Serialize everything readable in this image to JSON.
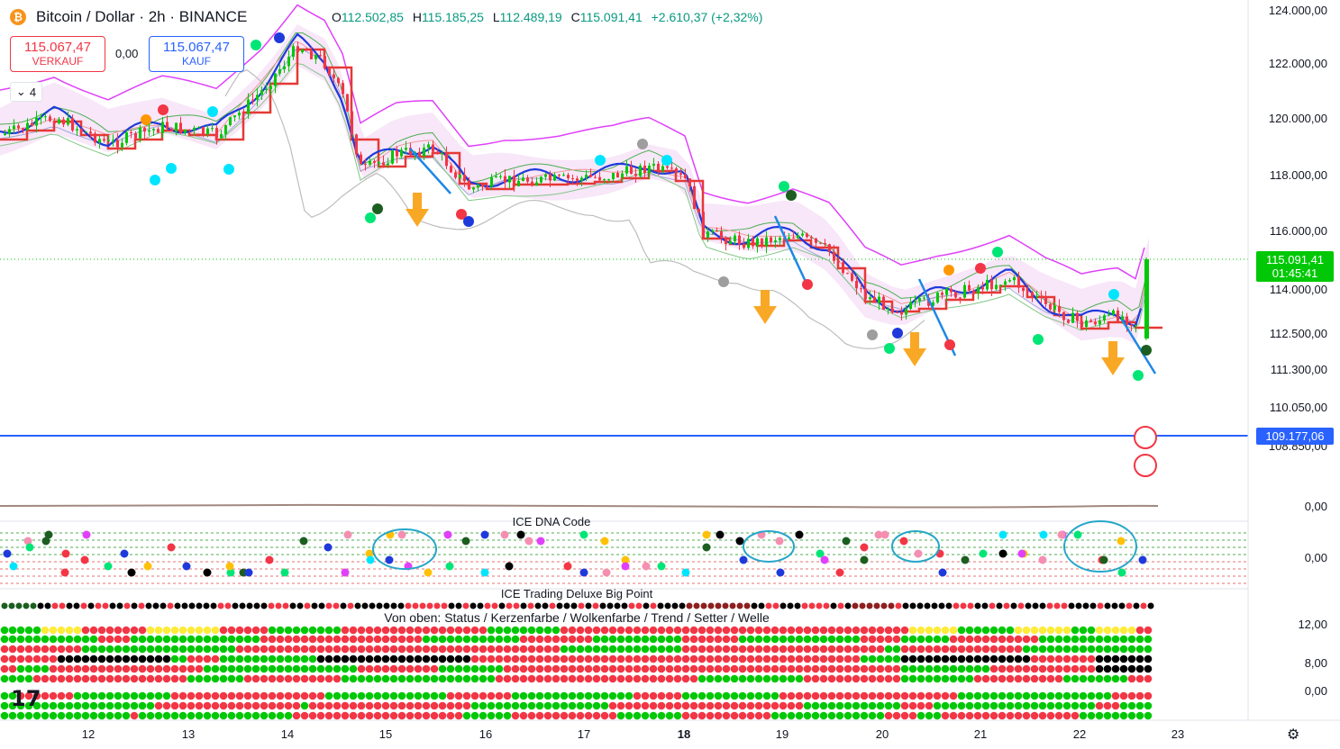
{
  "header": {
    "symbol_icon": "bitcoin-icon",
    "title": "Bitcoin / Dollar · 2h · BINANCE",
    "ohlc": [
      {
        "k": "O",
        "v": "112.502,85"
      },
      {
        "k": "H",
        "v": "115.185,25"
      },
      {
        "k": "L",
        "v": "112.489,19"
      },
      {
        "k": "C",
        "v": "115.091,41"
      }
    ],
    "change": "+2.610,37 (+2,32%)"
  },
  "trade": {
    "sell_price": "115.067,47",
    "sell_label": "VERKAUF",
    "spread": "0,00",
    "buy_price": "115.067,47",
    "buy_label": "KAUF"
  },
  "indicators_count": "4",
  "price_axis": {
    "ticks": [
      "124.000,00",
      "122.000,00",
      "120.000,00",
      "118.000,00",
      "116.000,00",
      "114.000,00",
      "112.500,00",
      "111.300,00",
      "110.050,00",
      "108.850,00"
    ],
    "last_price": "115.091,41",
    "countdown": "01:45:41",
    "line_price": "109.177,06"
  },
  "osc_axis": {
    "tick": "0,00"
  },
  "dna_axis": {
    "tick": "0,00"
  },
  "big_axis": {
    "ticks": [
      "12,00",
      "8,00",
      "0,00"
    ]
  },
  "panels": {
    "dna_title": "ICE DNA Code",
    "big_title": "ICE Trading Deluxe Big Point",
    "rows_title": "Von oben: Status / Kerzenfarbe / Wolkenfarbe / Trend / Setter / Welle"
  },
  "time_axis": [
    "12",
    "13",
    "14",
    "15",
    "16",
    "17",
    "18",
    "19",
    "20",
    "21",
    "22",
    "23"
  ],
  "colors": {
    "up": "#00c806",
    "down": "#f23645",
    "accent": "#2962ff"
  }
}
